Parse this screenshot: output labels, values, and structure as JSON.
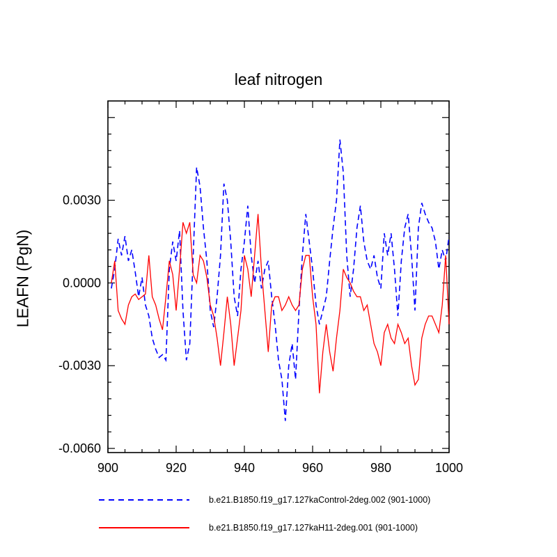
{
  "page": {
    "background": "#ffffff"
  },
  "chart_data": {
    "type": "line",
    "title": "leaf nitrogen",
    "ylabel": "LEAFN  (PgN)",
    "xlabel": "",
    "xlim": [
      900,
      1000
    ],
    "ylim": [
      -0.00615,
      0.0066
    ],
    "x_start": 901,
    "x_step": 1,
    "grid": false,
    "legend_position": "bottom",
    "x_ticks": [
      {
        "v": 900,
        "label": "900"
      },
      {
        "v": 920,
        "label": "920"
      },
      {
        "v": 940,
        "label": "940"
      },
      {
        "v": 960,
        "label": "960"
      },
      {
        "v": 980,
        "label": "980"
      },
      {
        "v": 1000,
        "label": "1000"
      }
    ],
    "x_minor_step": 5,
    "y_ticks": [
      {
        "v": -0.006,
        "label": "-0.0060"
      },
      {
        "v": -0.003,
        "label": "-0.0030"
      },
      {
        "v": 0.0,
        "label": "0.0000"
      },
      {
        "v": 0.003,
        "label": "0.0030"
      },
      {
        "v": 0.006,
        "label": ""
      }
    ],
    "y_minor_step": 0.0006,
    "series": [
      {
        "name": "b.e21.B1850.f19_g17.127kaControl-2deg.002 (901-1000)",
        "color": "#0000ff",
        "line_style": "dashed",
        "values": [
          -0.0002,
          0.0005,
          0.0016,
          0.001,
          0.0017,
          0.0008,
          0.0012,
          0.0004,
          -0.0005,
          0.0002,
          -0.0008,
          -0.0012,
          -0.002,
          -0.0024,
          -0.0027,
          -0.0026,
          -0.0028,
          0.0005,
          0.0015,
          0.0008,
          0.0019,
          -0.001,
          -0.0028,
          -0.0022,
          0.001,
          0.0042,
          0.0035,
          0.002,
          0.0008,
          -0.001,
          -0.0016,
          -0.0005,
          0.001,
          0.0036,
          0.003,
          0.0015,
          -0.0005,
          -0.0012,
          0.0005,
          0.0015,
          0.0028,
          0.001,
          0.0,
          0.0008,
          -0.0002,
          0.0005,
          0.0008,
          -0.0005,
          -0.0015,
          -0.0028,
          -0.0035,
          -0.005,
          -0.003,
          -0.0022,
          -0.0035,
          -0.001,
          0.001,
          0.0025,
          0.0015,
          0.0005,
          -0.0008,
          -0.0015,
          -0.001,
          -0.0005,
          0.0008,
          0.002,
          0.003,
          0.0052,
          0.004,
          0.001,
          -0.0005,
          0.0005,
          0.002,
          0.0028,
          0.0015,
          0.0008,
          0.0005,
          0.001,
          0.0002,
          -0.0002,
          0.0018,
          0.001,
          0.0018,
          0.0005,
          -0.0012,
          0.0008,
          0.002,
          0.0025,
          0.001,
          -0.001,
          0.002,
          0.0029,
          0.0025,
          0.0022,
          0.002,
          0.0015,
          0.0005,
          0.0012,
          0.0008,
          0.0017
        ]
      },
      {
        "name": "b.e21.B1850.f19_g17.127kaH11-2deg.001 (901-1000)",
        "color": "#ff0000",
        "line_style": "solid",
        "values": [
          0.0,
          0.0008,
          -0.001,
          -0.0013,
          -0.0015,
          -0.0008,
          -0.0005,
          -0.0004,
          -0.0006,
          -0.0005,
          -0.0004,
          0.001,
          -0.0005,
          -0.0008,
          -0.0013,
          -0.0017,
          -0.0005,
          0.0008,
          0.0003,
          -0.001,
          0.0005,
          0.0022,
          0.0018,
          0.0022,
          0.0003,
          0.0,
          0.001,
          0.0008,
          0.0002,
          -0.0008,
          -0.0012,
          -0.002,
          -0.003,
          -0.0018,
          -0.0005,
          -0.0015,
          -0.003,
          -0.002,
          -0.001,
          0.001,
          0.0005,
          -0.0005,
          0.001,
          0.0025,
          0.0005,
          -0.001,
          -0.0025,
          -0.0008,
          -0.0005,
          -0.0005,
          -0.001,
          -0.0008,
          -0.0005,
          -0.0008,
          -0.001,
          -0.0008,
          0.0005,
          0.001,
          0.001,
          -0.0005,
          -0.0015,
          -0.004,
          -0.0025,
          -0.0015,
          -0.0025,
          -0.0032,
          -0.002,
          -0.001,
          0.0005,
          0.0002,
          0.0,
          -0.0003,
          -0.0005,
          -0.0005,
          -0.001,
          -0.0008,
          -0.0015,
          -0.0022,
          -0.0025,
          -0.003,
          -0.0018,
          -0.0015,
          -0.002,
          -0.0022,
          -0.0015,
          -0.0018,
          -0.0022,
          -0.002,
          -0.003,
          -0.0037,
          -0.0035,
          -0.002,
          -0.0015,
          -0.0012,
          -0.0012,
          -0.0015,
          -0.0018,
          -0.0008,
          0.001,
          -0.0015
        ]
      }
    ]
  },
  "legend": {
    "entries": [
      {
        "label": "b.e21.B1850.f19_g17.127kaControl-2deg.002 (901-1000)"
      },
      {
        "label": "b.e21.B1850.f19_g17.127kaH11-2deg.001 (901-1000)"
      }
    ]
  }
}
